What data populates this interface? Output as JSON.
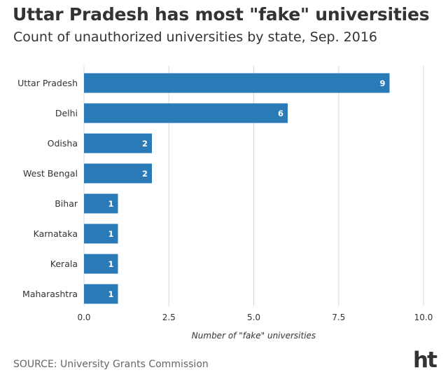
{
  "header": {
    "title": "Uttar Pradesh has most \"fake\" universities",
    "subtitle": "Count of unauthorized universities by state, Sep. 2016"
  },
  "footer": {
    "source": "SOURCE: University Grants Commission",
    "logo_text": "ht"
  },
  "colors": {
    "bar": "#2a7ab8",
    "grid": "#d8d8d8",
    "text": "#333333"
  },
  "chart_data": {
    "type": "bar",
    "orientation": "horizontal",
    "categories": [
      "Uttar Pradesh",
      "Delhi",
      "Odisha",
      "West Bengal",
      "Bihar",
      "Karnataka",
      "Kerala",
      "Maharashtra"
    ],
    "values": [
      9,
      6,
      2,
      2,
      1,
      1,
      1,
      1
    ],
    "xlabel": "Number of \"fake\" universities",
    "xlim": [
      0,
      10
    ],
    "xticks": [
      0,
      2.5,
      5,
      7.5,
      10
    ],
    "xtick_labels": [
      "0.0",
      "2.5",
      "5.0",
      "7.5",
      "10.0"
    ],
    "grid": true,
    "data_labels": true
  }
}
